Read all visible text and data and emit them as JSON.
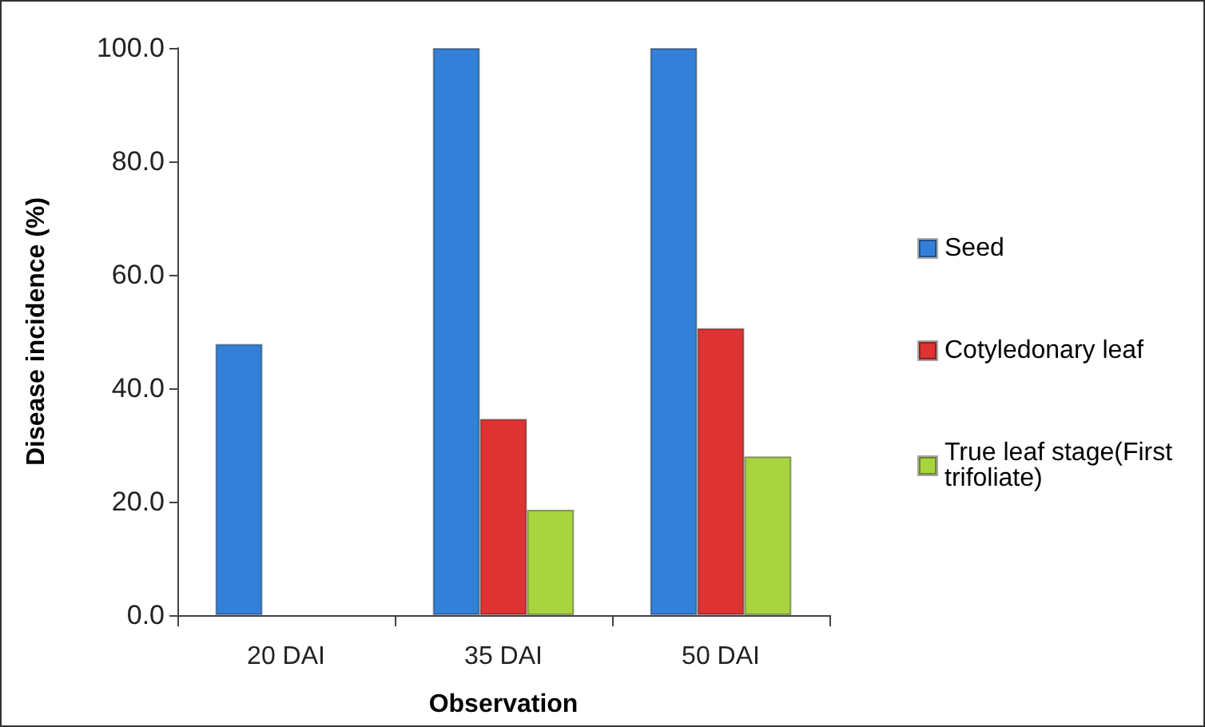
{
  "chart_data": {
    "type": "bar",
    "xlabel": "Observation",
    "ylabel": "Disease incidence (%)",
    "categories": [
      "20 DAI",
      "35 DAI",
      "50 DAI"
    ],
    "series": [
      {
        "name": "Seed",
        "color": "#3380d8",
        "values": [
          47.8,
          100,
          100
        ]
      },
      {
        "name": "Cotyledonary leaf",
        "color": "#dd3333",
        "values": [
          null,
          34.6,
          50.6
        ]
      },
      {
        "name": "True leaf stage(First trifoliate)",
        "color": "#a8d440",
        "values": [
          null,
          18.6,
          28.0
        ]
      }
    ],
    "ylim": [
      0,
      100
    ],
    "yticks": [
      {
        "value": 0,
        "label": "0.0"
      },
      {
        "value": 20,
        "label": "20.0"
      },
      {
        "value": 40,
        "label": "40.0"
      },
      {
        "value": 60,
        "label": "60.0"
      },
      {
        "value": 80,
        "label": "80.0"
      },
      {
        "value": 100,
        "label": "100.0"
      }
    ],
    "grid": false,
    "legend": "right"
  }
}
